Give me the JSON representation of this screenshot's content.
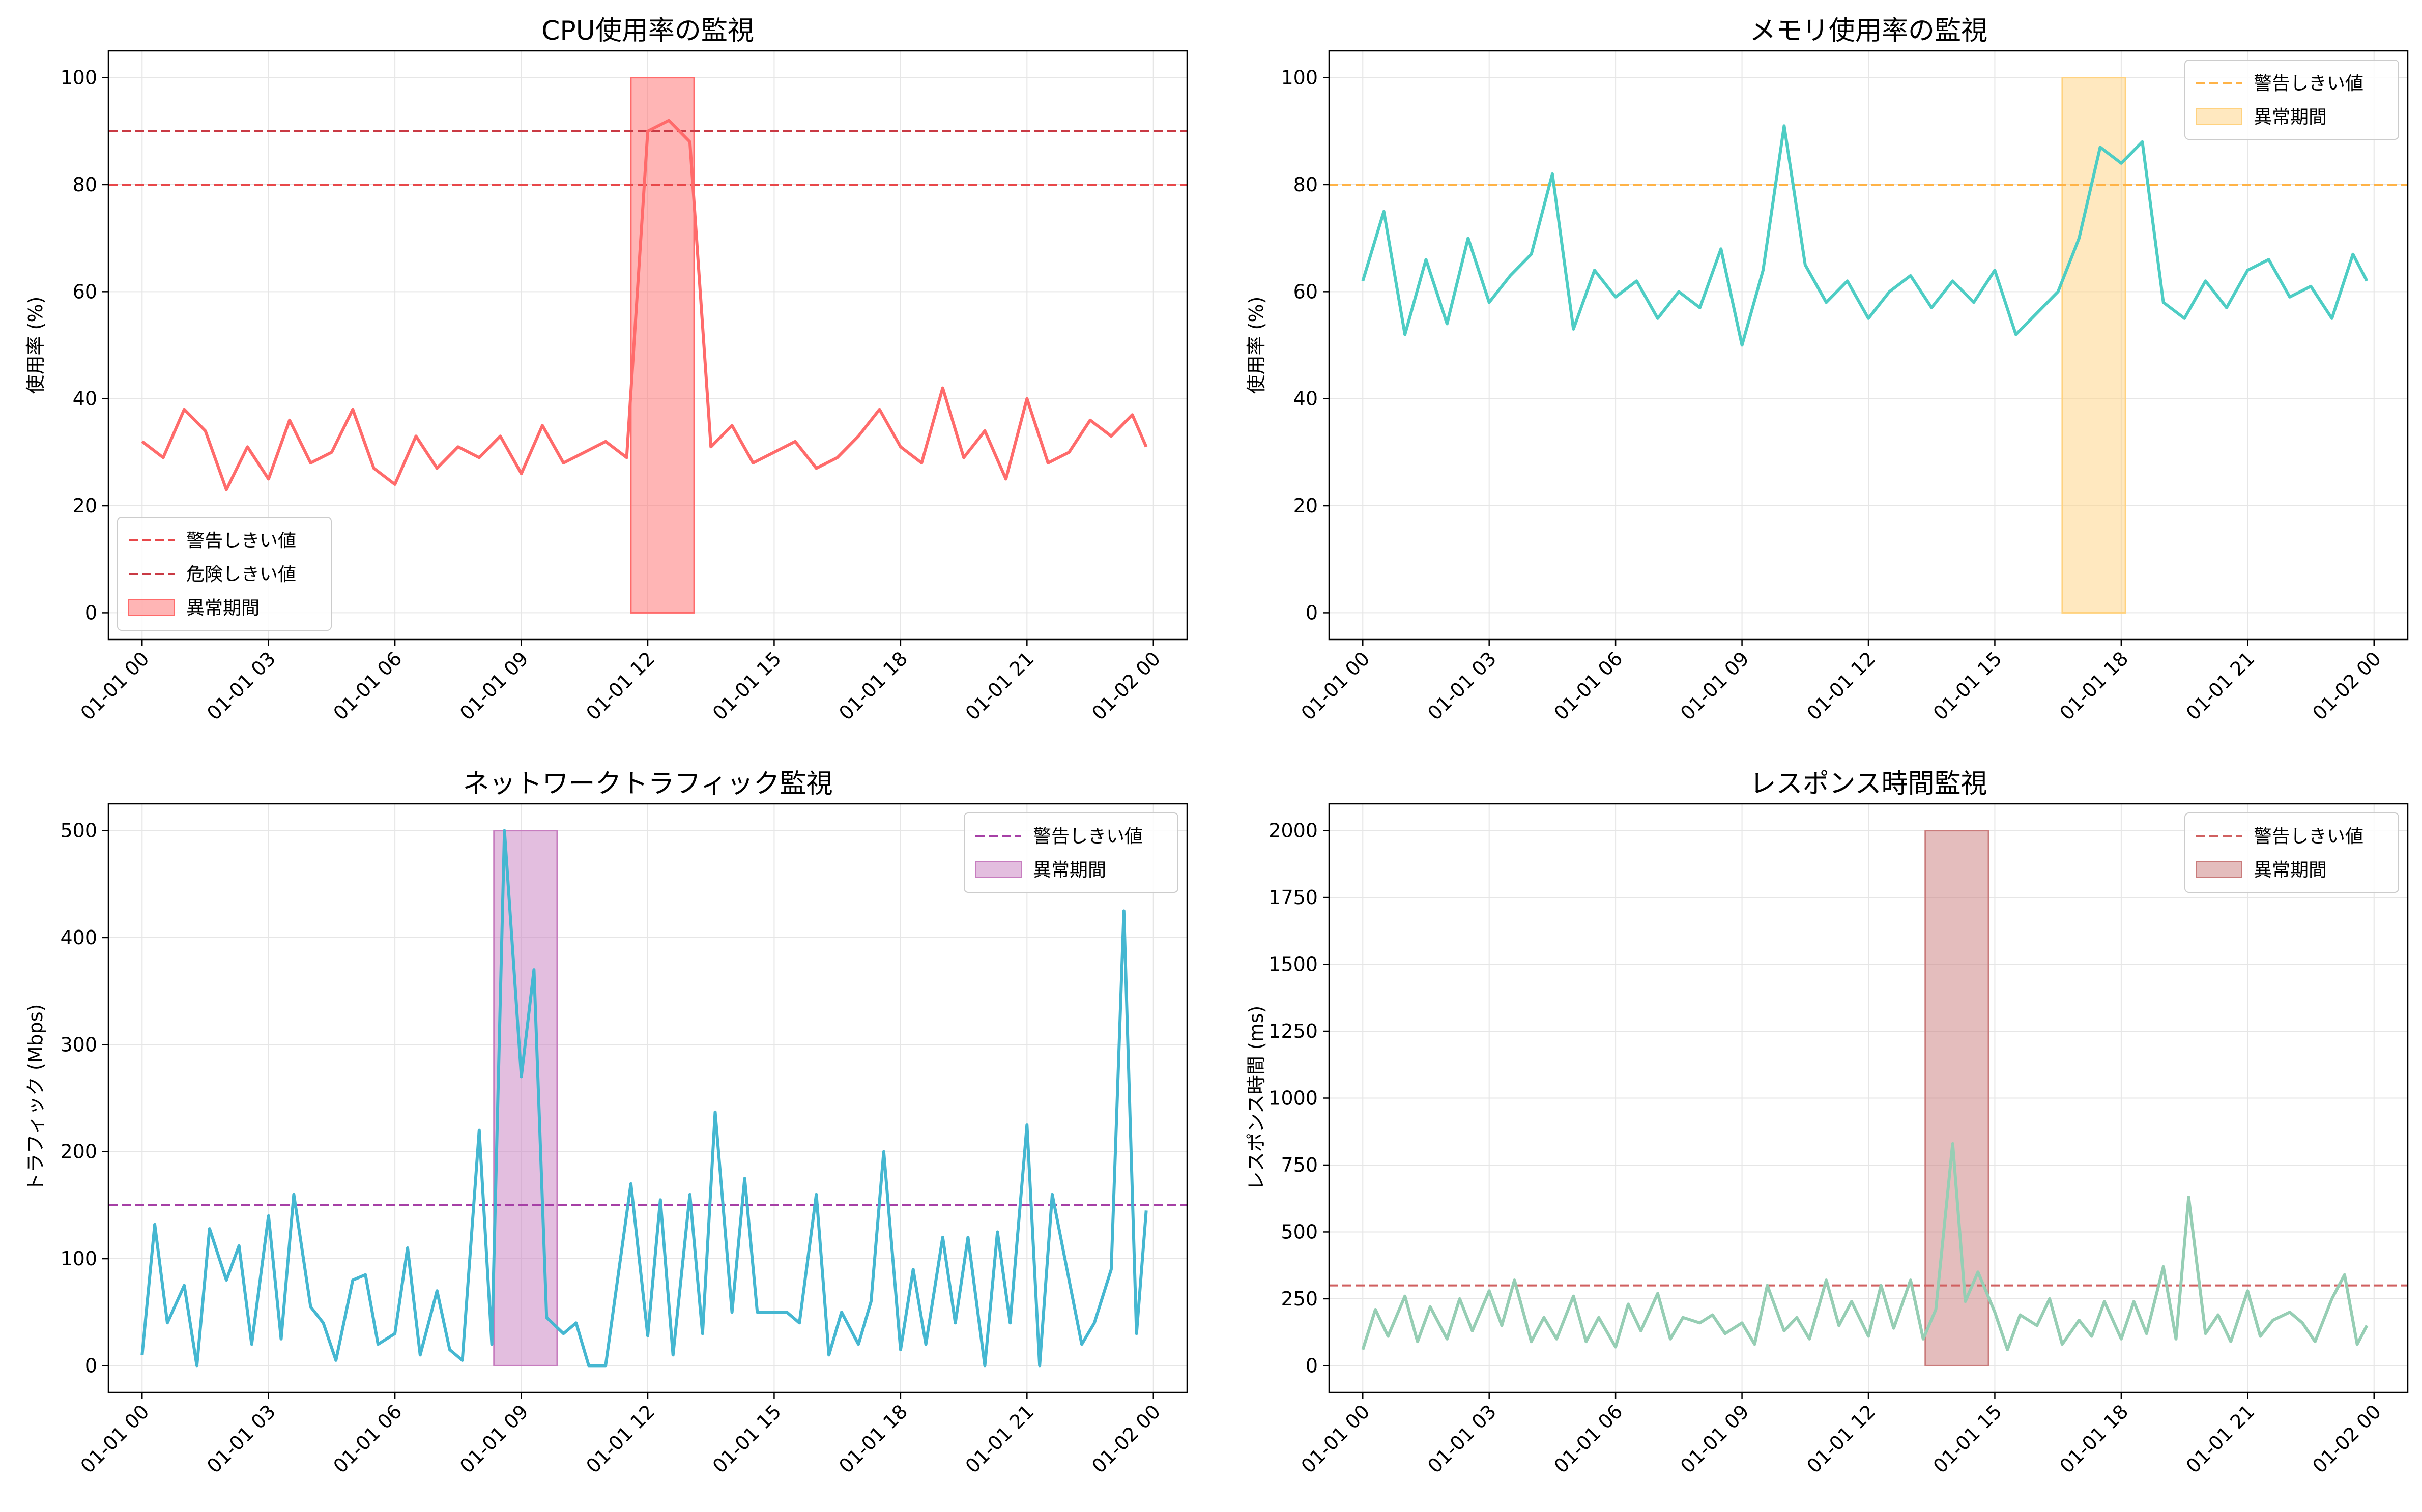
{
  "chart_data": [
    {
      "type": "line",
      "title": "CPU使用率の監視",
      "xlabel": "",
      "ylabel": "使用率 (%)",
      "ylim": [
        -5,
        105
      ],
      "yticks": [
        0,
        20,
        40,
        60,
        80,
        100
      ],
      "xlim": [
        -0.8,
        24.8
      ],
      "xticks": [
        0,
        3,
        6,
        9,
        12,
        15,
        18,
        21,
        24
      ],
      "xtick_labels": [
        "01-01 00",
        "01-01 03",
        "01-01 06",
        "01-01 09",
        "01-01 12",
        "01-01 15",
        "01-01 18",
        "01-01 21",
        "01-02 00"
      ],
      "grid": true,
      "legend_position": "lower-left",
      "series": [
        {
          "name": "CPU使用率",
          "color": "#ff6b6b",
          "x": [
            0,
            0.5,
            1,
            1.5,
            2,
            2.5,
            3,
            3.5,
            4,
            4.5,
            5,
            5.5,
            6,
            6.5,
            7,
            7.5,
            8,
            8.5,
            9,
            9.5,
            10,
            10.5,
            11,
            11.5,
            12,
            12.5,
            13,
            13.5,
            14,
            14.5,
            15,
            15.5,
            16,
            16.5,
            17,
            17.5,
            18,
            18.5,
            19,
            19.5,
            20,
            20.5,
            21,
            21.5,
            22,
            22.5,
            23,
            23.5,
            23.83
          ],
          "values": [
            32,
            29,
            38,
            34,
            23,
            31,
            25,
            36,
            28,
            30,
            38,
            27,
            24,
            33,
            27,
            31,
            29,
            33,
            26,
            35,
            28,
            30,
            32,
            29,
            90,
            92,
            88,
            31,
            35,
            28,
            30,
            32,
            27,
            29,
            33,
            38,
            31,
            28,
            42,
            29,
            34,
            25,
            40,
            28,
            30,
            36,
            33,
            37,
            31
          ]
        }
      ],
      "hlines": [
        {
          "name": "警告しきい値",
          "value": 80,
          "color": "#e8484a"
        },
        {
          "name": "危険しきい値",
          "value": 90,
          "color": "#c93a44"
        }
      ],
      "spans": [
        {
          "name": "異常期間",
          "from": 11.6,
          "to": 13.1,
          "ymax": 100,
          "color": "#ff6b6b"
        }
      ]
    },
    {
      "type": "line",
      "title": "メモリ使用率の監視",
      "xlabel": "",
      "ylabel": "使用率 (%)",
      "ylim": [
        -5,
        105
      ],
      "yticks": [
        0,
        20,
        40,
        60,
        80,
        100
      ],
      "xlim": [
        -0.8,
        24.8
      ],
      "xticks": [
        0,
        3,
        6,
        9,
        12,
        15,
        18,
        21,
        24
      ],
      "xtick_labels": [
        "01-01 00",
        "01-01 03",
        "01-01 06",
        "01-01 09",
        "01-01 12",
        "01-01 15",
        "01-01 18",
        "01-01 21",
        "01-02 00"
      ],
      "grid": true,
      "legend_position": "upper-right",
      "series": [
        {
          "name": "メモリ使用率",
          "color": "#4ecdc4",
          "x": [
            0,
            0.5,
            1,
            1.5,
            2,
            2.5,
            3,
            3.5,
            4,
            4.5,
            5,
            5.5,
            6,
            6.5,
            7,
            7.5,
            8,
            8.5,
            9,
            9.5,
            10,
            10.5,
            11,
            11.5,
            12,
            12.5,
            13,
            13.5,
            14,
            14.5,
            15,
            15.5,
            16,
            16.5,
            17,
            17.5,
            18,
            18.5,
            19,
            19.5,
            20,
            20.5,
            21,
            21.5,
            22,
            22.5,
            23,
            23.5,
            23.83
          ],
          "values": [
            62,
            75,
            52,
            66,
            54,
            70,
            58,
            63,
            67,
            82,
            53,
            64,
            59,
            62,
            55,
            60,
            57,
            68,
            50,
            64,
            91,
            65,
            58,
            62,
            55,
            60,
            63,
            57,
            62,
            58,
            64,
            52,
            56,
            60,
            70,
            87,
            84,
            88,
            58,
            55,
            62,
            57,
            64,
            66,
            59,
            61,
            55,
            67,
            62
          ]
        }
      ],
      "hlines": [
        {
          "name": "警告しきい値",
          "value": 80,
          "color": "#ffb347"
        }
      ],
      "spans": [
        {
          "name": "異常期間",
          "from": 16.6,
          "to": 18.1,
          "ymax": 100,
          "color": "#ffd27f"
        }
      ]
    },
    {
      "type": "line",
      "title": "ネットワークトラフィック監視",
      "xlabel": "",
      "ylabel": "トラフィック (Mbps)",
      "ylim": [
        -25,
        525
      ],
      "yticks": [
        0,
        100,
        200,
        300,
        400,
        500
      ],
      "xlim": [
        -0.8,
        24.8
      ],
      "xticks": [
        0,
        3,
        6,
        9,
        12,
        15,
        18,
        21,
        24
      ],
      "xtick_labels": [
        "01-01 00",
        "01-01 03",
        "01-01 06",
        "01-01 09",
        "01-01 12",
        "01-01 15",
        "01-01 18",
        "01-01 21",
        "01-02 00"
      ],
      "grid": true,
      "legend_position": "upper-right",
      "series": [
        {
          "name": "トラフィック",
          "color": "#45b7d1",
          "x": [
            0,
            0.3,
            0.6,
            1,
            1.3,
            1.6,
            2,
            2.3,
            2.6,
            3,
            3.3,
            3.6,
            4,
            4.3,
            4.6,
            5,
            5.3,
            5.6,
            6,
            6.3,
            6.6,
            7,
            7.3,
            7.6,
            8,
            8.3,
            8.6,
            9,
            9.3,
            9.6,
            10,
            10.3,
            10.6,
            11,
            11.3,
            11.6,
            12,
            12.3,
            12.6,
            13,
            13.3,
            13.6,
            14,
            14.3,
            14.6,
            15,
            15.3,
            15.6,
            16,
            16.3,
            16.6,
            17,
            17.3,
            17.6,
            18,
            18.3,
            18.6,
            19,
            19.3,
            19.6,
            20,
            20.3,
            20.6,
            21,
            21.3,
            21.6,
            22,
            22.3,
            22.6,
            23,
            23.3,
            23.6,
            23.83
          ],
          "values": [
            10,
            132,
            40,
            75,
            0,
            128,
            80,
            112,
            20,
            140,
            25,
            160,
            55,
            40,
            5,
            80,
            85,
            20,
            30,
            110,
            10,
            70,
            15,
            5,
            220,
            20,
            500,
            270,
            370,
            45,
            30,
            40,
            0,
            0,
            85,
            170,
            28,
            155,
            10,
            160,
            30,
            237,
            50,
            175,
            50,
            50,
            50,
            40,
            160,
            10,
            50,
            20,
            60,
            200,
            15,
            90,
            20,
            120,
            40,
            120,
            0,
            125,
            40,
            225,
            0,
            160,
            80,
            20,
            40,
            90,
            425,
            30,
            145
          ]
        }
      ],
      "hlines": [
        {
          "name": "警告しきい値",
          "value": 150,
          "color": "#a640a6"
        }
      ],
      "spans": [
        {
          "name": "異常期間",
          "from": 8.35,
          "to": 9.85,
          "ymax": 500,
          "color": "#c77dbf"
        }
      ]
    },
    {
      "type": "line",
      "title": "レスポンス時間監視",
      "xlabel": "",
      "ylabel": "レスポンス時間 (ms)",
      "ylim": [
        -100,
        2100
      ],
      "yticks": [
        0,
        250,
        500,
        750,
        1000,
        1250,
        1500,
        1750,
        2000
      ],
      "xlim": [
        -0.8,
        24.8
      ],
      "xticks": [
        0,
        3,
        6,
        9,
        12,
        15,
        18,
        21,
        24
      ],
      "xtick_labels": [
        "01-01 00",
        "01-01 03",
        "01-01 06",
        "01-01 09",
        "01-01 12",
        "01-01 15",
        "01-01 18",
        "01-01 21",
        "01-02 00"
      ],
      "grid": true,
      "legend_position": "upper-right",
      "series": [
        {
          "name": "レスポンス時間",
          "color": "#96ceb4",
          "x": [
            0,
            0.3,
            0.6,
            1,
            1.3,
            1.6,
            2,
            2.3,
            2.6,
            3,
            3.3,
            3.6,
            4,
            4.3,
            4.6,
            5,
            5.3,
            5.6,
            6,
            6.3,
            6.6,
            7,
            7.3,
            7.6,
            8,
            8.3,
            8.6,
            9,
            9.3,
            9.6,
            10,
            10.3,
            10.6,
            11,
            11.3,
            11.6,
            12,
            12.3,
            12.6,
            13,
            13.3,
            13.6,
            14,
            14.3,
            14.6,
            15,
            15.3,
            15.6,
            16,
            16.3,
            16.6,
            17,
            17.3,
            17.6,
            18,
            18.3,
            18.6,
            19,
            19.3,
            19.6,
            20,
            20.3,
            20.6,
            21,
            21.3,
            21.6,
            22,
            22.3,
            22.6,
            23,
            23.3,
            23.6,
            23.83
          ],
          "values": [
            60,
            210,
            110,
            260,
            90,
            220,
            100,
            250,
            130,
            280,
            150,
            320,
            90,
            180,
            100,
            260,
            90,
            180,
            70,
            230,
            130,
            270,
            100,
            180,
            160,
            190,
            120,
            160,
            80,
            300,
            130,
            180,
            100,
            320,
            150,
            240,
            110,
            300,
            140,
            320,
            100,
            210,
            830,
            240,
            350,
            200,
            60,
            190,
            150,
            250,
            80,
            170,
            110,
            240,
            100,
            240,
            120,
            370,
            100,
            630,
            120,
            190,
            90,
            280,
            110,
            170,
            200,
            160,
            90,
            250,
            340,
            80,
            150
          ]
        }
      ],
      "hlines": [
        {
          "name": "警告しきい値",
          "value": 300,
          "color": "#d06060"
        }
      ],
      "spans": [
        {
          "name": "異常期間",
          "from": 13.35,
          "to": 14.85,
          "ymax": 2000,
          "color": "#c97b7b"
        }
      ]
    }
  ]
}
